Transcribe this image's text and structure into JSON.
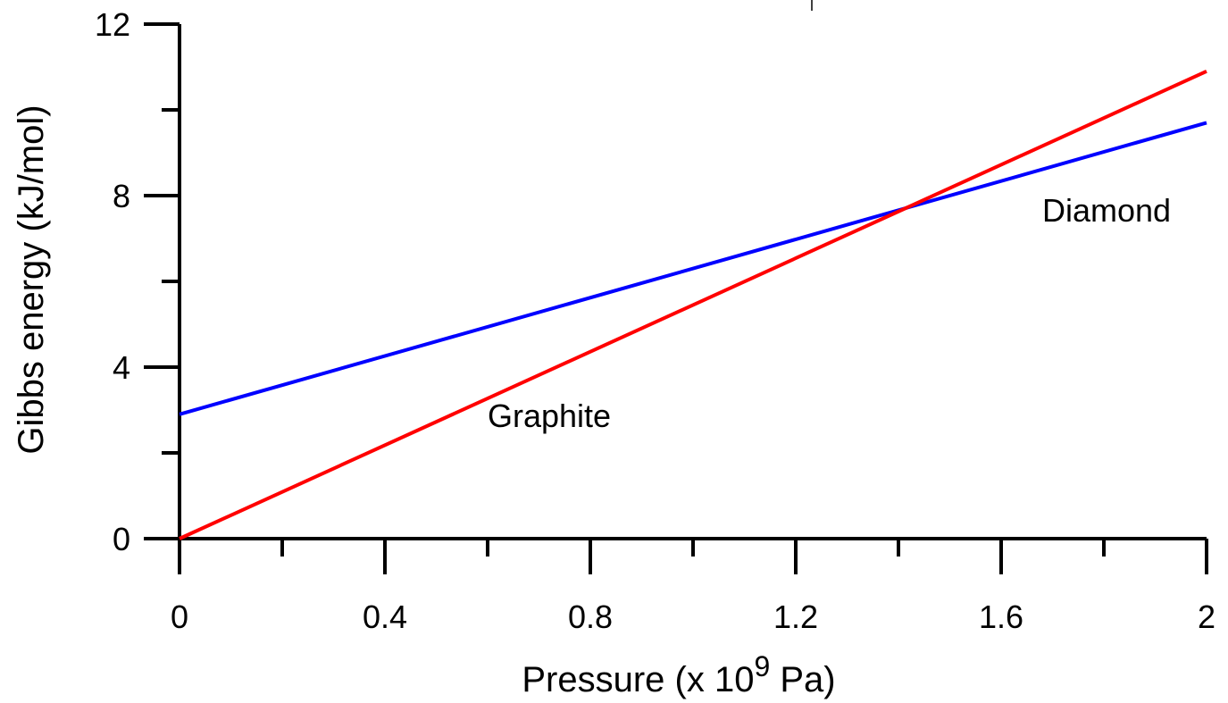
{
  "chart_data": {
    "type": "line",
    "xlabel": "Pressure (x 10",
    "xlabel_superscript": "9",
    "xlabel_suffix": " Pa)",
    "ylabel": "Gibbs energy (kJ/mol)",
    "xlim": [
      0,
      2
    ],
    "ylim": [
      0,
      12
    ],
    "x_ticks": [
      0,
      0.4,
      0.8,
      1.2,
      1.6,
      2
    ],
    "x_tick_labels": [
      "0",
      "0.4",
      "0.8",
      "1.2",
      "1.6",
      "2"
    ],
    "x_minor_ticks": [
      0.2,
      0.6,
      1.0,
      1.4,
      1.8
    ],
    "y_ticks": [
      0,
      4,
      8,
      12
    ],
    "y_tick_labels": [
      "0",
      "4",
      "8",
      "12"
    ],
    "y_minor_ticks": [
      2,
      6,
      10
    ],
    "grid": false,
    "legend": "none",
    "series": [
      {
        "name": "Graphite",
        "color": "#ff0000",
        "x": [
          0,
          2
        ],
        "y": [
          0,
          10.9
        ]
      },
      {
        "name": "Diamond",
        "color": "#0000ff",
        "x": [
          0,
          2
        ],
        "y": [
          2.9,
          9.7
        ]
      }
    ],
    "annotations": [
      {
        "text": "Graphite",
        "x": 0.6,
        "y": 2.6
      },
      {
        "text": "Diamond",
        "x": 1.68,
        "y": 7.4
      }
    ]
  }
}
